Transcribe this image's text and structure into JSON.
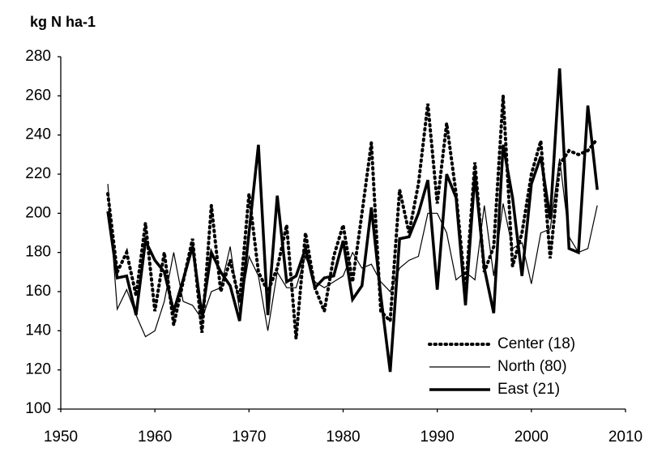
{
  "chart_data": {
    "type": "line",
    "y_label": "kg N ha-1",
    "x": [
      1955,
      1956,
      1957,
      1958,
      1959,
      1960,
      1961,
      1962,
      1963,
      1964,
      1965,
      1966,
      1967,
      1968,
      1969,
      1970,
      1971,
      1972,
      1973,
      1974,
      1975,
      1976,
      1977,
      1978,
      1979,
      1980,
      1981,
      1982,
      1983,
      1984,
      1985,
      1986,
      1987,
      1988,
      1989,
      1990,
      1991,
      1992,
      1993,
      1994,
      1995,
      1996,
      1997,
      1998,
      1999,
      2000,
      2001,
      2002,
      2003,
      2004,
      2005,
      2006,
      2007
    ],
    "series": [
      {
        "name": "Center (18)",
        "color": "#000000",
        "dashed": true,
        "line_width": 4,
        "values": [
          210,
          170,
          180,
          158,
          195,
          150,
          180,
          143,
          165,
          187,
          139,
          204,
          160,
          176,
          155,
          210,
          170,
          160,
          172,
          194,
          136,
          190,
          162,
          150,
          178,
          194,
          165,
          200,
          236,
          150,
          145,
          212,
          190,
          215,
          256,
          205,
          246,
          210,
          160,
          226,
          170,
          183,
          260,
          173,
          190,
          220,
          237,
          177,
          225,
          232,
          230,
          232,
          238
        ]
      },
      {
        "name": "North (80)",
        "color": "#000000",
        "dashed": false,
        "line_width": 1.2,
        "values": [
          215,
          151,
          161,
          148,
          137,
          140,
          155,
          180,
          155,
          153,
          146,
          160,
          162,
          183,
          150,
          178,
          168,
          140,
          170,
          162,
          162,
          178,
          165,
          162,
          165,
          168,
          180,
          172,
          174,
          165,
          160,
          172,
          176,
          178,
          200,
          200,
          190,
          166,
          170,
          166,
          204,
          168,
          205,
          182,
          185,
          164,
          190,
          192,
          228,
          188,
          180,
          182,
          204
        ]
      },
      {
        "name": "East (21)",
        "color": "#000000",
        "dashed": false,
        "line_width": 3.5,
        "values": [
          201,
          167,
          168,
          148,
          186,
          176,
          170,
          150,
          166,
          183,
          148,
          180,
          170,
          163,
          145,
          190,
          235,
          148,
          209,
          165,
          168,
          182,
          162,
          167,
          168,
          186,
          156,
          163,
          203,
          158,
          119,
          187,
          188,
          200,
          217,
          161,
          220,
          208,
          153,
          220,
          172,
          149,
          235,
          208,
          168,
          215,
          229,
          197,
          274,
          182,
          180,
          255,
          212
        ]
      }
    ],
    "xlim": [
      1950,
      2010
    ],
    "xticks": [
      1950,
      1960,
      1970,
      1980,
      1990,
      2000,
      2010
    ],
    "ylim": [
      100,
      280
    ],
    "yticks": [
      100,
      120,
      140,
      160,
      180,
      200,
      220,
      240,
      260,
      280
    ],
    "grid": false,
    "legend": "lower right"
  }
}
